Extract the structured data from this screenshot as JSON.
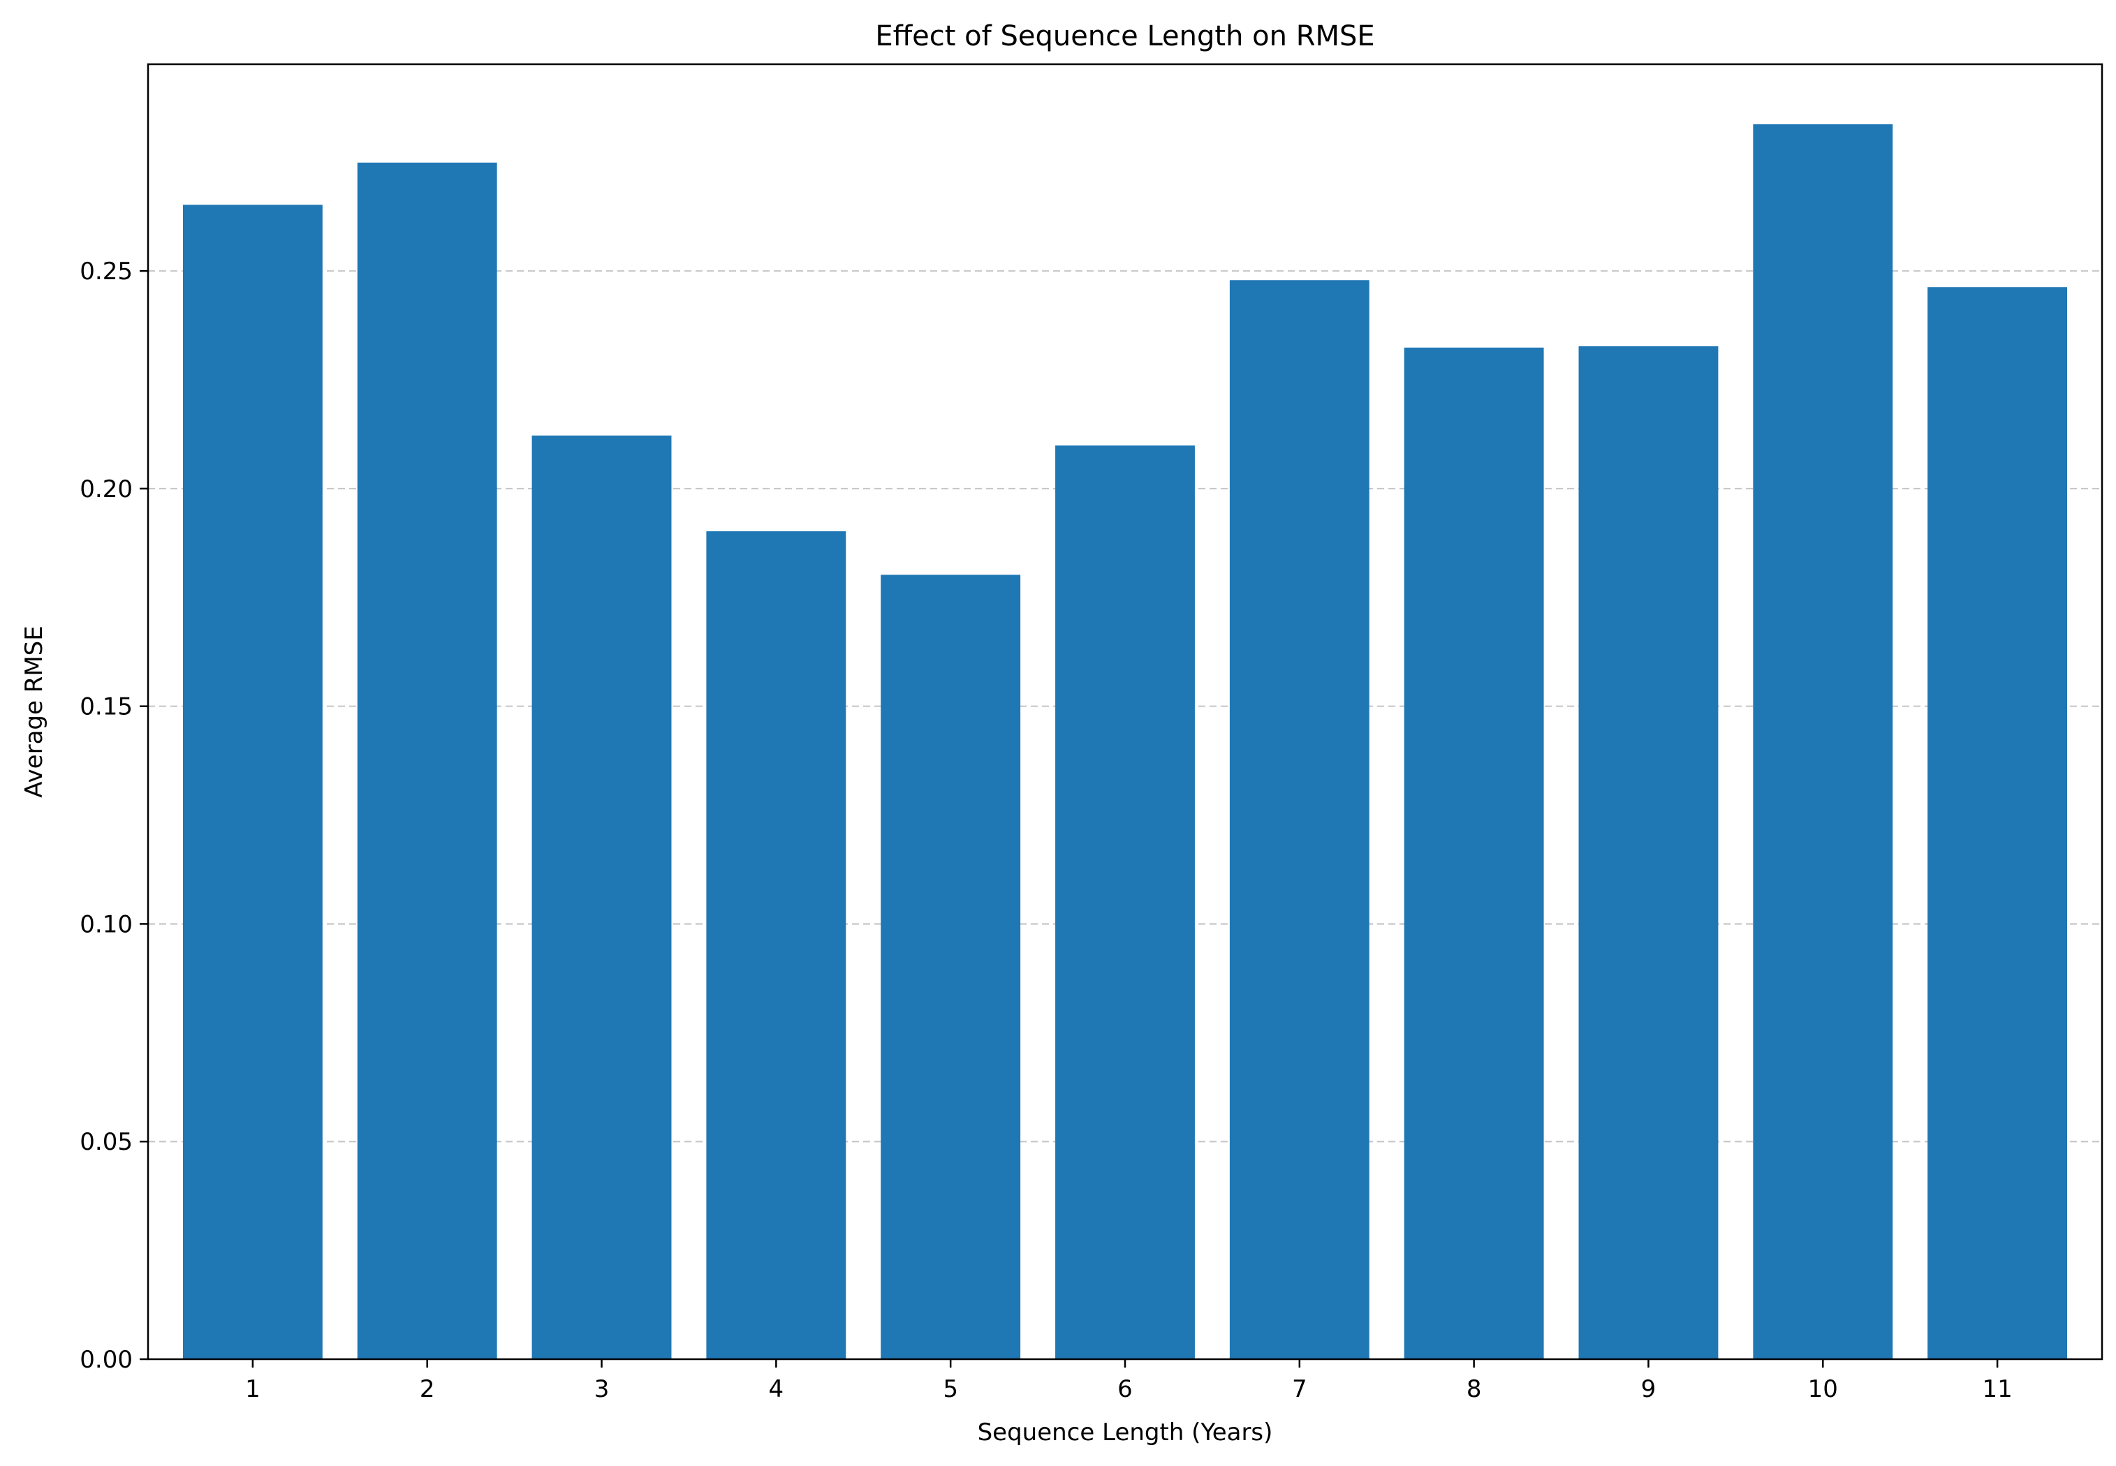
{
  "chart_data": {
    "type": "bar",
    "title": "Effect of Sequence Length on RMSE",
    "xlabel": "Sequence Length (Years)",
    "ylabel": "Average RMSE",
    "categories": [
      "1",
      "2",
      "3",
      "4",
      "5",
      "6",
      "7",
      "8",
      "9",
      "10",
      "11"
    ],
    "values": [
      0.2652,
      0.2749,
      0.2122,
      0.1902,
      0.1802,
      0.2099,
      0.2479,
      0.2324,
      0.2327,
      0.2837,
      0.2463
    ],
    "ylim": [
      0,
      0.2975
    ],
    "yticks": [
      0.0,
      0.05,
      0.1,
      0.15,
      0.2,
      0.25
    ],
    "ytick_labels": [
      "0.00",
      "0.05",
      "0.10",
      "0.15",
      "0.20",
      "0.25"
    ],
    "grid": "y-axis, dashed",
    "legend": "none",
    "bar_color": "#1f77b4",
    "grid_color": "#c8c8c8"
  }
}
